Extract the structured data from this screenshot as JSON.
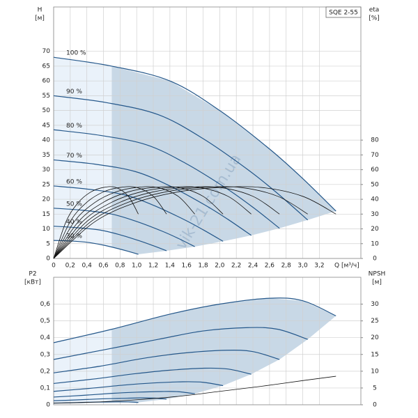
{
  "chart_data": [
    {
      "type": "line",
      "title": "SQE 2-55",
      "y_label": "H",
      "y_unit": "[м]",
      "y2_label": "eta",
      "y2_unit": "[%]",
      "x_label": "Q [м³/ч]",
      "watermark": "vik-21.com.ua",
      "xlim": [
        0,
        3.7
      ],
      "xticks": [
        0,
        {
          "value": 0.2,
          "label": "0,2"
        },
        {
          "value": 0.4,
          "label": "0,4"
        },
        {
          "value": 0.6,
          "label": "0,6"
        },
        {
          "value": 0.8,
          "label": "0,8"
        },
        {
          "value": 1.0,
          "label": "1,0"
        },
        {
          "value": 1.2,
          "label": "1,2"
        },
        {
          "value": 1.4,
          "label": "1,4"
        },
        {
          "value": 1.6,
          "label": "1,6"
        },
        {
          "value": 1.8,
          "label": "1,8"
        },
        {
          "value": 2.0,
          "label": "2,0"
        },
        {
          "value": 2.2,
          "label": "2,2"
        },
        {
          "value": 2.4,
          "label": "2,4"
        },
        {
          "value": 2.6,
          "label": "2,6"
        },
        {
          "value": 2.8,
          "label": "2,8"
        },
        {
          "value": 3.0,
          "label": "3,0"
        },
        {
          "value": 3.2,
          "label": "3,2"
        }
      ],
      "ylim": [
        0,
        85
      ],
      "yticks": [
        0,
        5,
        10,
        15,
        20,
        25,
        30,
        35,
        40,
        45,
        50,
        55,
        60,
        65,
        70
      ],
      "y2lim": [
        0,
        170
      ],
      "y2ticks": [
        0,
        10,
        20,
        30,
        40,
        50,
        60,
        70,
        80
      ],
      "grid": true,
      "shaded_from_x": 0.7,
      "series": [
        {
          "name": "100 %",
          "color": "#24578a",
          "x": [
            0,
            0.7,
            1.4,
            2.0,
            2.6,
            3.0,
            3.4
          ],
          "values": [
            68,
            65,
            60,
            50,
            37,
            27,
            16
          ]
        },
        {
          "name": "90 %",
          "color": "#24578a",
          "x": [
            0,
            0.63,
            1.26,
            1.8,
            2.34,
            2.7,
            3.06
          ],
          "values": [
            55,
            52.7,
            48.6,
            40.5,
            30,
            21.9,
            13
          ]
        },
        {
          "name": "80 %",
          "color": "#24578a",
          "x": [
            0,
            0.56,
            1.12,
            1.6,
            2.08,
            2.4,
            2.72
          ],
          "values": [
            43.5,
            41.6,
            38.4,
            32,
            23.7,
            17.3,
            10.2
          ]
        },
        {
          "name": "70 %",
          "color": "#24578a",
          "x": [
            0,
            0.49,
            0.98,
            1.4,
            1.82,
            2.1,
            2.38
          ],
          "values": [
            33.3,
            31.9,
            29.4,
            24.5,
            18.1,
            13.2,
            7.8
          ]
        },
        {
          "name": "60 %",
          "color": "#24578a",
          "x": [
            0,
            0.42,
            0.84,
            1.2,
            1.56,
            1.8,
            2.04
          ],
          "values": [
            24.5,
            23.4,
            21.6,
            18,
            13.3,
            9.7,
            5.8
          ]
        },
        {
          "name": "50 %",
          "color": "#24578a",
          "x": [
            0,
            0.35,
            0.7,
            1.0,
            1.3,
            1.5,
            1.7
          ],
          "values": [
            17,
            16.3,
            15,
            12.5,
            9.3,
            6.8,
            4
          ]
        },
        {
          "name": "40 %",
          "color": "#24578a",
          "x": [
            0,
            0.28,
            0.56,
            0.8,
            1.04,
            1.2,
            1.36
          ],
          "values": [
            10.9,
            10.4,
            9.6,
            8,
            5.9,
            4.3,
            2.6
          ]
        },
        {
          "name": "30 %",
          "color": "#24578a",
          "x": [
            0,
            0.21,
            0.42,
            0.6,
            0.78,
            0.9,
            1.02
          ],
          "values": [
            6.1,
            5.9,
            5.4,
            4.5,
            3.3,
            2.4,
            1.4
          ]
        },
        {
          "axis": "y2",
          "color": "#111111",
          "x": [
            0,
            0.5,
            1.0,
            1.5,
            2.0,
            2.5,
            3.0,
            3.4
          ],
          "values": [
            0,
            25,
            38,
            45,
            48,
            48,
            42,
            30
          ]
        },
        {
          "axis": "y2",
          "color": "#111111",
          "x": [
            0,
            0.45,
            0.9,
            1.35,
            1.8,
            2.25,
            2.7,
            3.06
          ],
          "values": [
            0,
            25,
            38,
            45,
            48,
            48,
            42,
            30
          ]
        },
        {
          "axis": "y2",
          "color": "#111111",
          "x": [
            0,
            0.4,
            0.8,
            1.2,
            1.6,
            2.0,
            2.4,
            2.72
          ],
          "values": [
            0,
            25,
            38,
            45,
            48,
            48,
            42,
            30
          ]
        },
        {
          "axis": "y2",
          "color": "#111111",
          "x": [
            0,
            0.35,
            0.7,
            1.05,
            1.4,
            1.75,
            2.1,
            2.38
          ],
          "values": [
            0,
            25,
            38,
            45,
            48,
            48,
            42,
            30
          ]
        },
        {
          "axis": "y2",
          "color": "#111111",
          "x": [
            0,
            0.3,
            0.6,
            0.9,
            1.2,
            1.5,
            1.8,
            2.04
          ],
          "values": [
            0,
            25,
            38,
            45,
            48,
            48,
            42,
            30
          ]
        },
        {
          "axis": "y2",
          "color": "#111111",
          "x": [
            0,
            0.25,
            0.5,
            0.75,
            1.0,
            1.25,
            1.5,
            1.7
          ],
          "values": [
            0,
            25,
            38,
            45,
            48,
            48,
            42,
            30
          ]
        },
        {
          "axis": "y2",
          "color": "#111111",
          "x": [
            0,
            0.2,
            0.4,
            0.6,
            0.8,
            1.0,
            1.2,
            1.36
          ],
          "values": [
            0,
            25,
            38,
            45,
            48,
            48,
            42,
            30
          ]
        },
        {
          "axis": "y2",
          "color": "#111111",
          "x": [
            0,
            0.15,
            0.3,
            0.45,
            0.6,
            0.75,
            0.9,
            1.02
          ],
          "values": [
            0,
            25,
            38,
            45,
            48,
            48,
            42,
            30
          ]
        }
      ]
    },
    {
      "type": "line",
      "y_label": "P2",
      "y_unit": "[кВт]",
      "y2_label": "NPSH",
      "y2_unit": "[м]",
      "xlim": [
        0,
        3.7
      ],
      "ylim": [
        0,
        0.76
      ],
      "yticks": [
        0,
        {
          "value": 0.1,
          "label": "0,1"
        },
        {
          "value": 0.2,
          "label": "0,2"
        },
        {
          "value": 0.3,
          "label": "0,3"
        },
        {
          "value": 0.4,
          "label": "0,4"
        },
        {
          "value": 0.5,
          "label": "0,5"
        },
        {
          "value": 0.6,
          "label": "0,6"
        }
      ],
      "y2lim": [
        0,
        38
      ],
      "y2ticks": [
        0,
        5,
        10,
        15,
        20,
        25,
        30
      ],
      "grid": true,
      "shaded_from_x": 0.7,
      "series": [
        {
          "color": "#24578a",
          "x": [
            0,
            0.7,
            1.4,
            2.0,
            2.6,
            3.0,
            3.4
          ],
          "values": [
            0.37,
            0.45,
            0.54,
            0.6,
            0.635,
            0.62,
            0.53
          ]
        },
        {
          "color": "#24578a",
          "x": [
            0,
            0.63,
            1.26,
            1.8,
            2.34,
            2.7,
            3.06
          ],
          "values": [
            0.27,
            0.33,
            0.39,
            0.44,
            0.46,
            0.45,
            0.39
          ]
        },
        {
          "color": "#24578a",
          "x": [
            0,
            0.56,
            1.12,
            1.6,
            2.08,
            2.4,
            2.72
          ],
          "values": [
            0.19,
            0.23,
            0.28,
            0.31,
            0.325,
            0.317,
            0.27
          ]
        },
        {
          "color": "#24578a",
          "x": [
            0,
            0.49,
            0.98,
            1.4,
            1.82,
            2.1,
            2.38
          ],
          "values": [
            0.127,
            0.154,
            0.185,
            0.206,
            0.218,
            0.213,
            0.182
          ]
        },
        {
          "color": "#24578a",
          "x": [
            0,
            0.42,
            0.84,
            1.2,
            1.56,
            1.8,
            2.04
          ],
          "values": [
            0.08,
            0.097,
            0.117,
            0.13,
            0.137,
            0.134,
            0.114
          ]
        },
        {
          "color": "#24578a",
          "x": [
            0,
            0.35,
            0.7,
            1.0,
            1.3,
            1.5,
            1.7
          ],
          "values": [
            0.046,
            0.056,
            0.068,
            0.075,
            0.079,
            0.078,
            0.066
          ]
        },
        {
          "color": "#24578a",
          "x": [
            0,
            0.28,
            0.56,
            0.8,
            1.04,
            1.2,
            1.36
          ],
          "values": [
            0.024,
            0.029,
            0.035,
            0.038,
            0.041,
            0.04,
            0.034
          ]
        },
        {
          "color": "#24578a",
          "x": [
            0,
            0.21,
            0.42,
            0.6,
            0.78,
            0.9,
            1.02
          ],
          "values": [
            0.01,
            0.012,
            0.015,
            0.016,
            0.017,
            0.017,
            0.014
          ]
        },
        {
          "axis": "y2",
          "color": "#111111",
          "x": [
            0,
            0.5,
            1.0,
            1.5,
            2.0,
            2.5,
            3.0,
            3.4
          ],
          "values": [
            0.5,
            0.8,
            1.5,
            2.5,
            4,
            5.5,
            7.2,
            8.5
          ]
        }
      ]
    }
  ]
}
